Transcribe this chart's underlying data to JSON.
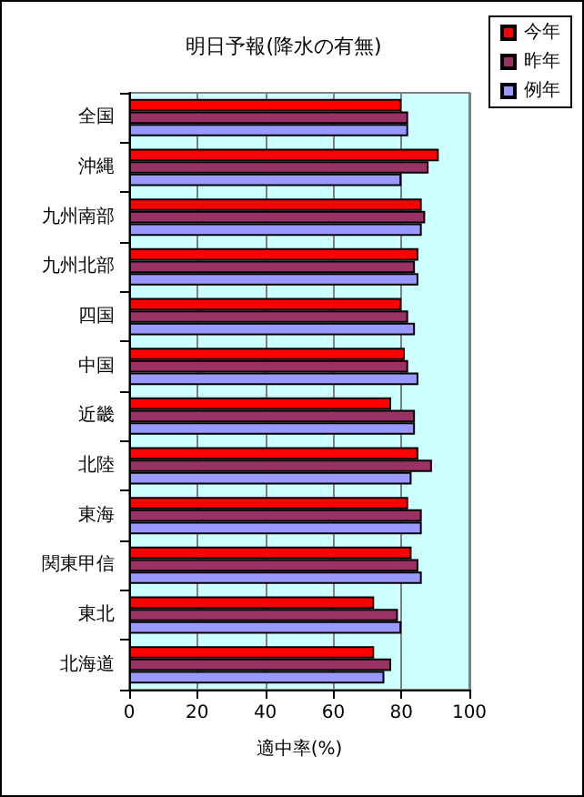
{
  "chart_data": {
    "type": "bar",
    "orientation": "horizontal",
    "title": "明日予報(降水の有無)",
    "xlabel": "適中率(%)",
    "categories": [
      "全国",
      "沖縄",
      "九州南部",
      "九州北部",
      "四国",
      "中国",
      "近畿",
      "北陸",
      "東海",
      "関東甲信",
      "東北",
      "北海道"
    ],
    "series": [
      {
        "name": "今年",
        "color": "#ff0000",
        "values": [
          80,
          91,
          86,
          85,
          80,
          81,
          77,
          85,
          82,
          83,
          72,
          72
        ]
      },
      {
        "name": "昨年",
        "color": "#993366",
        "values": [
          82,
          88,
          87,
          84,
          82,
          82,
          84,
          89,
          86,
          85,
          79,
          77
        ]
      },
      {
        "name": "例年",
        "color": "#9999ff",
        "values": [
          82,
          80,
          86,
          85,
          84,
          85,
          84,
          83,
          86,
          86,
          80,
          75
        ]
      }
    ],
    "xlim": [
      0,
      100
    ],
    "xticks": [
      0,
      20,
      40,
      60,
      80,
      100
    ],
    "grid": "x",
    "legend": "top right"
  }
}
